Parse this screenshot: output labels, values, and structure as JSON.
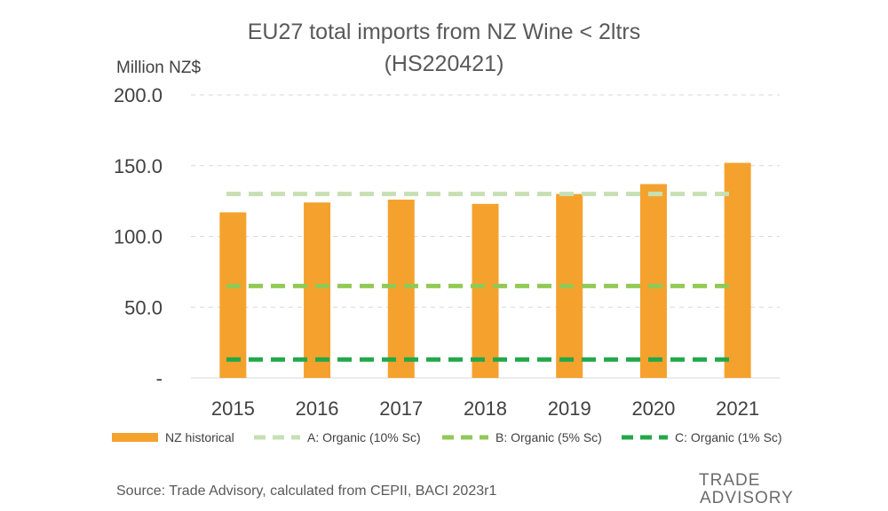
{
  "chart_data": {
    "type": "bar",
    "title_line1": "EU27 total imports from NZ Wine < 2ltrs",
    "title_line2": "(HS220421)",
    "ylabel": "Million NZ$",
    "ylim": [
      0,
      200
    ],
    "yticks": [
      {
        "value": 0,
        "label": "-"
      },
      {
        "value": 50,
        "label": "50.0"
      },
      {
        "value": 100,
        "label": "100.0"
      },
      {
        "value": 150,
        "label": "150.0"
      },
      {
        "value": 200,
        "label": "200.0"
      }
    ],
    "categories": [
      "2015",
      "2016",
      "2017",
      "2018",
      "2019",
      "2020",
      "2021"
    ],
    "series": [
      {
        "name": "NZ historical",
        "kind": "bar",
        "color": "#F4A22D",
        "values": [
          117,
          124,
          126,
          123,
          130,
          137,
          152
        ]
      },
      {
        "name": "A: Organic (10% Sc)",
        "kind": "dashed-line",
        "color": "#C6E0B4",
        "value": 130
      },
      {
        "name": "B: Organic (5% Sc)",
        "kind": "dashed-line",
        "color": "#92C955",
        "value": 65
      },
      {
        "name": "C: Organic (1% Sc)",
        "kind": "dashed-line",
        "color": "#22A84A",
        "value": 13
      }
    ],
    "grid": true,
    "legend_position": "bottom"
  },
  "footer": {
    "source": "Source: Trade Advisory, calculated from CEPII, BACI 2023r1",
    "logo_line1": "TRADE",
    "logo_line2": "ADVISORY"
  }
}
